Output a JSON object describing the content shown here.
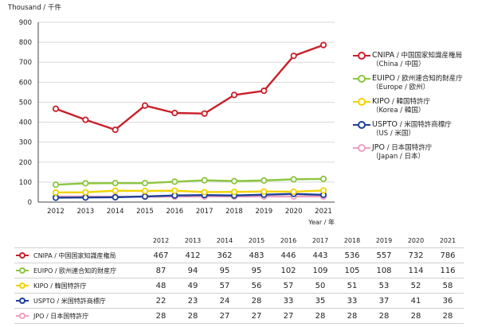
{
  "chart_data": {
    "type": "line",
    "ylabel": "Thousand / 千件",
    "xlabel": "Year / 年",
    "ylim": [
      0,
      900
    ],
    "yticks": [
      0,
      100,
      200,
      300,
      400,
      500,
      600,
      700,
      800,
      900
    ],
    "grid": true,
    "legend_position": "right",
    "categories": [
      "2012",
      "2013",
      "2014",
      "2015",
      "2016",
      "2017",
      "2018",
      "2019",
      "2020",
      "2021"
    ],
    "series": [
      {
        "key": "cnipa",
        "name": "CNIPA / 中国国家知識産権局",
        "legend_line1": "CNIPA",
        "legend_line1_suffix": " / 中国国家知識産権局",
        "legend_line2": "（China / 中国）",
        "color": "#c8202a",
        "values": [
          467,
          412,
          362,
          483,
          446,
          443,
          536,
          557,
          732,
          786
        ]
      },
      {
        "key": "euipo",
        "name": "EUIPO / 欧州連合知的財産庁",
        "legend_line1": "EUIPO",
        "legend_line1_suffix": " / 欧州連合知的財産庁",
        "legend_line2": "（Europe / 欧州）",
        "color": "#8cc63f",
        "values": [
          87,
          94,
          95,
          95,
          102,
          109,
          105,
          108,
          114,
          116
        ]
      },
      {
        "key": "kipo",
        "name": "KIPO / 韓国特許庁",
        "legend_line1": "KIPO",
        "legend_line1_suffix": " / 韓国特許庁",
        "legend_line2": "（Korea / 韓国）",
        "color": "#f2d200",
        "values": [
          48,
          49,
          57,
          56,
          57,
          50,
          51,
          53,
          52,
          58
        ]
      },
      {
        "key": "uspto",
        "name": "USPTO / 米国特許商標庁",
        "legend_line1": "USPTO",
        "legend_line1_suffix": " / 米国特許商標庁",
        "legend_line2": "（US / 米国）",
        "color": "#1c3f94",
        "values": [
          22,
          23,
          24,
          28,
          33,
          35,
          33,
          37,
          41,
          36
        ]
      },
      {
        "key": "jpo",
        "name": "JPO / 日本国特許庁",
        "legend_line1": "JPO",
        "legend_line1_suffix": " / 日本国特許庁",
        "legend_line2": "（Japan / 日本）",
        "color": "#f0a0c0",
        "values": [
          28,
          28,
          27,
          27,
          27,
          28,
          28,
          28,
          28,
          28
        ]
      }
    ]
  }
}
